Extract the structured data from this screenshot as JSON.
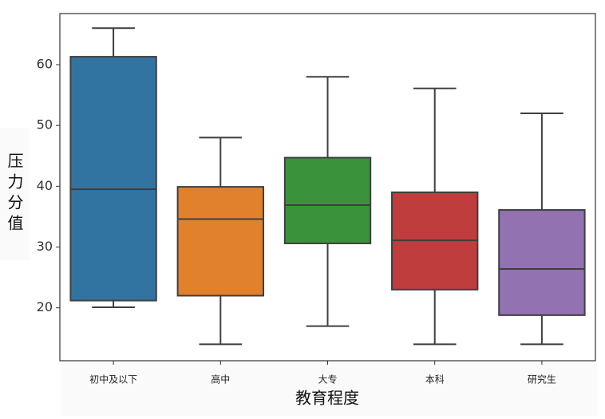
{
  "chart_data": {
    "type": "box",
    "x_label": "教育程度",
    "y_label": "压力分值",
    "categories": [
      "初中及以下",
      "高中",
      "大专",
      "本科",
      "研究生"
    ],
    "colors": [
      "#3274a1",
      "#e1812c",
      "#3a923a",
      "#c03d3e",
      "#9372b2"
    ],
    "boxes": [
      {
        "min": 20.1,
        "q1": 21.2,
        "median": 39.5,
        "q3": 61.3,
        "max": 66.0
      },
      {
        "min": 14.0,
        "q1": 22.0,
        "median": 34.6,
        "q3": 39.9,
        "max": 48.0
      },
      {
        "min": 17.0,
        "q1": 30.6,
        "median": 36.9,
        "q3": 44.7,
        "max": 58.0
      },
      {
        "min": 14.0,
        "q1": 23.0,
        "median": 31.1,
        "q3": 39.0,
        "max": 56.1
      },
      {
        "min": 14.0,
        "q1": 18.8,
        "median": 26.4,
        "q3": 36.1,
        "max": 52.0
      }
    ],
    "ylim": [
      11.3,
      68.4
    ],
    "yticks": [
      20,
      30,
      40,
      50,
      60
    ]
  }
}
